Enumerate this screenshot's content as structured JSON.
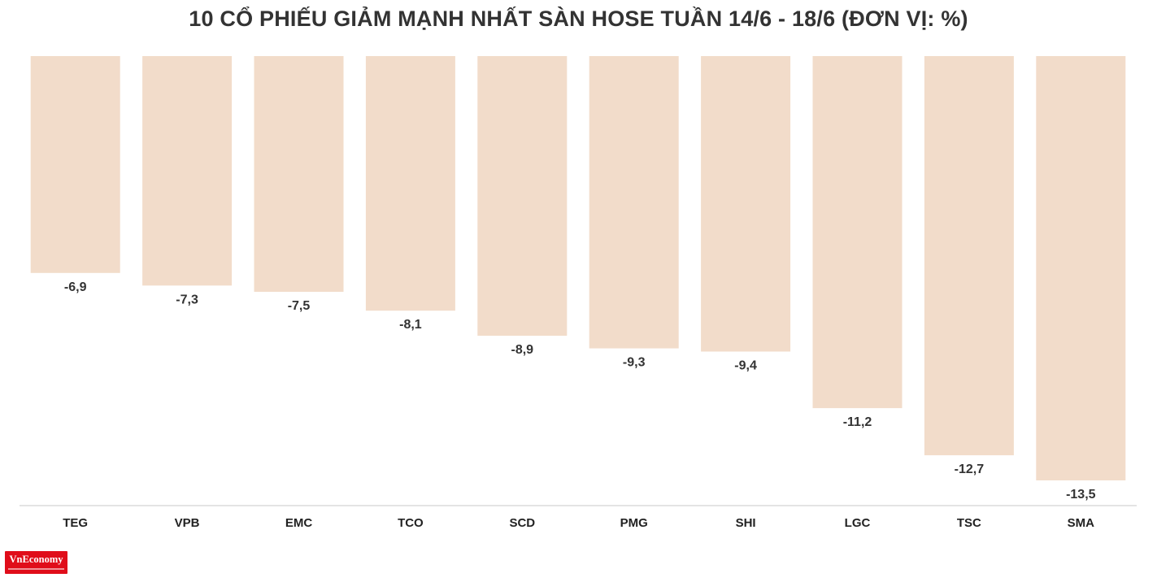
{
  "chart_data": {
    "type": "bar",
    "title": "10 CỔ PHIẾU GIẢM MẠNH NHẤT SÀN HOSE TUẦN 14/6 - 18/6 (ĐƠN VỊ: %)",
    "categories": [
      "TEG",
      "VPB",
      "EMC",
      "TCO",
      "SCD",
      "PMG",
      "SHI",
      "LGC",
      "TSC",
      "SMA"
    ],
    "values": [
      -6.9,
      -7.3,
      -7.5,
      -8.1,
      -8.9,
      -9.3,
      -9.4,
      -11.2,
      -12.7,
      -13.5
    ],
    "value_labels": [
      "-6,9",
      "-7,3",
      "-7,5",
      "-8,1",
      "-8,9",
      "-9,3",
      "-9,4",
      "-11,2",
      "-12,7",
      "-13,5"
    ],
    "ylim": [
      -13.5,
      0
    ],
    "xlabel": "",
    "ylabel": "",
    "grid": false,
    "bar_color": "#f2dcca"
  },
  "brand": {
    "logo_text": "VnEconomy",
    "logo_color": "#e00d1a"
  }
}
